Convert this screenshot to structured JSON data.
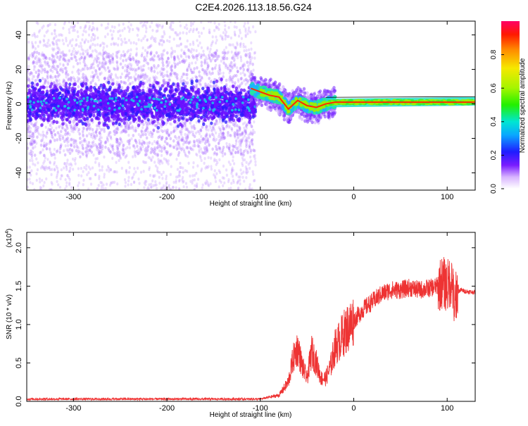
{
  "title": "C2E4.2026.113.18.56.G24",
  "colors": {
    "snr_line": "#ee3333",
    "axis": "#000000",
    "spectrum_ridge": "#ff2a00"
  },
  "chart_data": [
    {
      "type": "heatmap",
      "xlabel": "Height of straight line (km)",
      "ylabel": "Frequency (Hz)",
      "xlim": [
        -350,
        130
      ],
      "ylim": [
        -50,
        48
      ],
      "xticks": [
        -300,
        -200,
        -100,
        0,
        100
      ],
      "yticks": [
        -40,
        -20,
        0,
        20,
        40
      ],
      "colorbar": {
        "label": "Normalized spectral amplitude",
        "range": [
          0,
          1
        ],
        "ticks": [
          "0.0",
          "0.2",
          "0.4",
          "0.6",
          "0.8"
        ]
      },
      "ridge_frequency_hz": [
        [
          -110,
          9
        ],
        [
          -100,
          7
        ],
        [
          -90,
          5
        ],
        [
          -80,
          4
        ],
        [
          -70,
          -3
        ],
        [
          -60,
          2
        ],
        [
          -50,
          -1
        ],
        [
          -40,
          -2
        ],
        [
          -30,
          0
        ],
        [
          -20,
          1
        ],
        [
          0,
          1
        ],
        [
          50,
          1
        ],
        [
          100,
          1
        ],
        [
          130,
          1
        ]
      ]
    },
    {
      "type": "line",
      "xlabel": "Height of straight line (km)",
      "ylabel": "SNR (10 * v/v)",
      "scale_label": "(x10",
      "scale_exp": "4",
      "scale_close": ")",
      "xlim": [
        -350,
        130
      ],
      "ylim": [
        0,
        2.2
      ],
      "xticks": [
        -300,
        -200,
        -100,
        0,
        100
      ],
      "yticks": [
        "0.0",
        "0.5",
        "1.0",
        "1.5",
        "2.0"
      ],
      "series": [
        {
          "name": "SNR",
          "x": [
            -350,
            -100,
            -80,
            -70,
            -65,
            -60,
            -55,
            -50,
            -45,
            -40,
            -35,
            -30,
            -25,
            -20,
            -10,
            0,
            10,
            20,
            30,
            40,
            50,
            60,
            70,
            80,
            90,
            95,
            100,
            105,
            108,
            110,
            115,
            120,
            130
          ],
          "y": [
            0.03,
            0.03,
            0.08,
            0.25,
            0.55,
            0.7,
            0.45,
            0.3,
            0.65,
            0.5,
            0.3,
            0.3,
            0.45,
            0.7,
            0.9,
            1.05,
            1.2,
            1.3,
            1.4,
            1.45,
            1.45,
            1.48,
            1.45,
            1.47,
            1.5,
            1.55,
            1.5,
            1.6,
            1.2,
            1.42,
            1.45,
            1.43,
            1.42
          ]
        }
      ]
    }
  ]
}
